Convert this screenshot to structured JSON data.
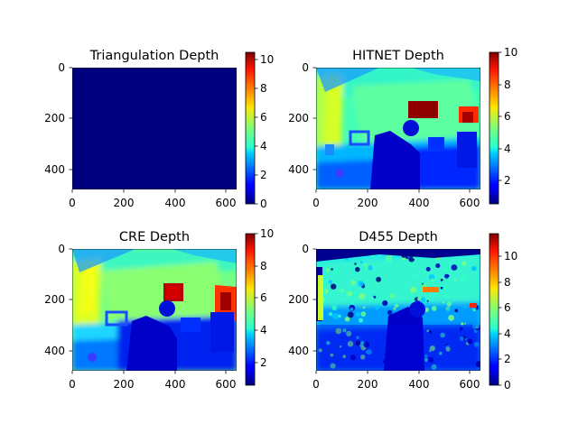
{
  "chart_data": [
    {
      "type": "heatmap",
      "title": "Triangulation Depth",
      "xlim": [
        0,
        640
      ],
      "ylim": [
        480,
        0
      ],
      "xticks": [
        0,
        200,
        400,
        600
      ],
      "yticks": [
        0,
        200,
        400
      ],
      "colormap": "jet",
      "colorbar": {
        "min": 0,
        "max": 10.5,
        "ticks": [
          0,
          2,
          4,
          6,
          8,
          10
        ]
      },
      "content": "nearly all zero depth with sparse near-zero speckles"
    },
    {
      "type": "heatmap",
      "title": "HITNET Depth",
      "xlim": [
        0,
        640
      ],
      "ylim": [
        480,
        0
      ],
      "xticks": [
        0,
        200,
        400,
        600
      ],
      "yticks": [
        0,
        200,
        400
      ],
      "colormap": "jet",
      "colorbar": {
        "min": 0.5,
        "max": 10,
        "ticks": [
          2,
          4,
          6,
          8,
          10
        ]
      },
      "content": "dense indoor depth map: far wall ~4-6, foreground desk ~1-2, dark red patches ~10"
    },
    {
      "type": "heatmap",
      "title": "CRE Depth",
      "xlim": [
        0,
        640
      ],
      "ylim": [
        480,
        0
      ],
      "xticks": [
        0,
        200,
        400,
        600
      ],
      "yticks": [
        0,
        200,
        400
      ],
      "colormap": "jet",
      "colorbar": {
        "min": 0.8,
        "max": 10,
        "ticks": [
          2,
          4,
          6,
          8,
          10
        ]
      },
      "content": "dense indoor depth map: far wall ~4-6, foreground ~1-2, red patches ~9-10"
    },
    {
      "type": "heatmap",
      "title": "D455 Depth",
      "xlim": [
        0,
        640
      ],
      "ylim": [
        480,
        0
      ],
      "xticks": [
        0,
        200,
        400,
        600
      ],
      "yticks": [
        0,
        200,
        400
      ],
      "colormap": "jet",
      "colorbar": {
        "min": 0,
        "max": 11.8,
        "ticks": [
          0,
          2,
          4,
          6,
          8,
          10
        ]
      },
      "content": "noisy sensor depth map: far region ~4-5, many holes at 0, near region ~1-2"
    }
  ]
}
